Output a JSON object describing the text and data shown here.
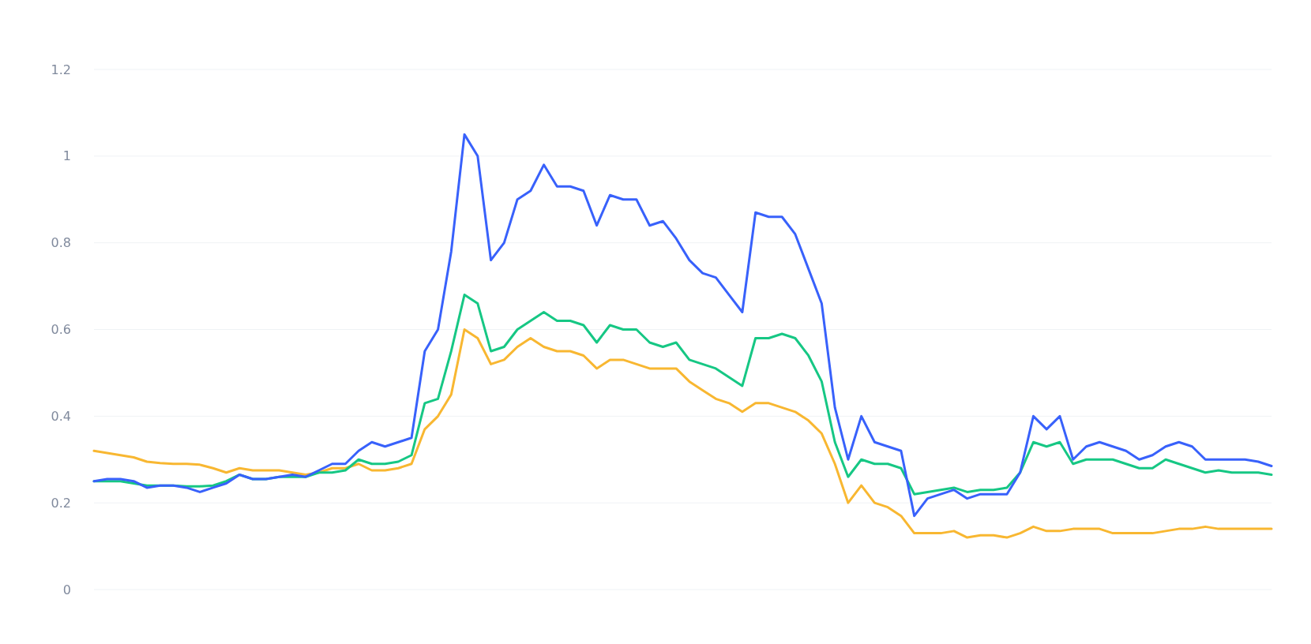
{
  "chart_data": {
    "type": "line",
    "categories": [
      null,
      null,
      null,
      null,
      null,
      null,
      null,
      null,
      null,
      null,
      null,
      null,
      null,
      null,
      null,
      null,
      null,
      null,
      null,
      null,
      null,
      null,
      null,
      null,
      null,
      null,
      null,
      null,
      null,
      null,
      null,
      null,
      null,
      null,
      null,
      null,
      null,
      null,
      null,
      null,
      null,
      null,
      null,
      null,
      null,
      null,
      null,
      null,
      null,
      null,
      null,
      null,
      null,
      null,
      null,
      null,
      null,
      null,
      null,
      null,
      null,
      null,
      null,
      null,
      null,
      null,
      null,
      null,
      null,
      null,
      null,
      null,
      null,
      null,
      null,
      null,
      null,
      null,
      null,
      null,
      null,
      null,
      null,
      null,
      null,
      null,
      null,
      null,
      null,
      null
    ],
    "series": [
      {
        "color": "#f8b731",
        "values": [
          0.32,
          0.315,
          0.31,
          0.305,
          0.295,
          0.292,
          0.29,
          0.29,
          0.288,
          0.28,
          0.27,
          0.28,
          0.275,
          0.275,
          0.275,
          0.27,
          0.265,
          0.27,
          0.28,
          0.28,
          0.29,
          0.275,
          0.275,
          0.28,
          0.29,
          0.37,
          0.4,
          0.45,
          0.6,
          0.58,
          0.52,
          0.53,
          0.56,
          0.58,
          0.56,
          0.55,
          0.55,
          0.54,
          0.51,
          0.53,
          0.53,
          0.52,
          0.51,
          0.51,
          0.51,
          0.48,
          0.46,
          0.44,
          0.43,
          0.41,
          0.43,
          0.43,
          0.42,
          0.41,
          0.39,
          0.36,
          0.29,
          0.2,
          0.24,
          0.2,
          0.19,
          0.17,
          0.13,
          0.13,
          0.13,
          0.135,
          0.12,
          0.125,
          0.125,
          0.12,
          0.13,
          0.145,
          0.135,
          0.135,
          0.14,
          0.14,
          0.14,
          0.13,
          0.13,
          0.13,
          0.13,
          0.135,
          0.14,
          0.14,
          0.145,
          0.14,
          0.14,
          0.14,
          0.14,
          0.14
        ]
      },
      {
        "color": "#16c784",
        "values": [
          0.25,
          0.25,
          0.25,
          0.245,
          0.24,
          0.24,
          0.24,
          0.238,
          0.238,
          0.24,
          0.25,
          0.265,
          0.255,
          0.255,
          0.26,
          0.26,
          0.26,
          0.27,
          0.27,
          0.275,
          0.3,
          0.29,
          0.29,
          0.295,
          0.31,
          0.43,
          0.44,
          0.55,
          0.68,
          0.66,
          0.55,
          0.56,
          0.6,
          0.62,
          0.64,
          0.62,
          0.62,
          0.61,
          0.57,
          0.61,
          0.6,
          0.6,
          0.57,
          0.56,
          0.57,
          0.53,
          0.52,
          0.51,
          0.49,
          0.47,
          0.58,
          0.58,
          0.59,
          0.58,
          0.54,
          0.48,
          0.34,
          0.26,
          0.3,
          0.29,
          0.29,
          0.28,
          0.22,
          0.225,
          0.23,
          0.235,
          0.225,
          0.23,
          0.23,
          0.235,
          0.27,
          0.34,
          0.33,
          0.34,
          0.29,
          0.3,
          0.3,
          0.3,
          0.29,
          0.28,
          0.28,
          0.3,
          0.29,
          0.28,
          0.27,
          0.275,
          0.27,
          0.27,
          0.27,
          0.265
        ]
      },
      {
        "color": "#3861fb",
        "values": [
          0.25,
          0.255,
          0.255,
          0.25,
          0.235,
          0.24,
          0.24,
          0.235,
          0.225,
          0.235,
          0.245,
          0.265,
          0.255,
          0.255,
          0.26,
          0.265,
          0.26,
          0.275,
          0.29,
          0.29,
          0.32,
          0.34,
          0.33,
          0.34,
          0.35,
          0.55,
          0.6,
          0.78,
          1.05,
          1.0,
          0.76,
          0.8,
          0.9,
          0.92,
          0.98,
          0.93,
          0.93,
          0.92,
          0.84,
          0.91,
          0.9,
          0.9,
          0.84,
          0.85,
          0.81,
          0.76,
          0.73,
          0.72,
          0.68,
          0.64,
          0.87,
          0.86,
          0.86,
          0.82,
          0.74,
          0.66,
          0.42,
          0.3,
          0.4,
          0.34,
          0.33,
          0.32,
          0.17,
          0.21,
          0.22,
          0.23,
          0.21,
          0.22,
          0.22,
          0.22,
          0.27,
          0.4,
          0.37,
          0.4,
          0.3,
          0.33,
          0.34,
          0.33,
          0.32,
          0.3,
          0.31,
          0.33,
          0.34,
          0.33,
          0.3,
          0.3,
          0.3,
          0.3,
          0.295,
          0.285
        ]
      }
    ],
    "ylim": [
      0,
      1.2
    ],
    "yticks": [
      0,
      0.2,
      0.4,
      0.6,
      0.8,
      1,
      1.2
    ],
    "grid": "y",
    "tick_labels": "y",
    "marker": "none",
    "line_style": "solid"
  }
}
